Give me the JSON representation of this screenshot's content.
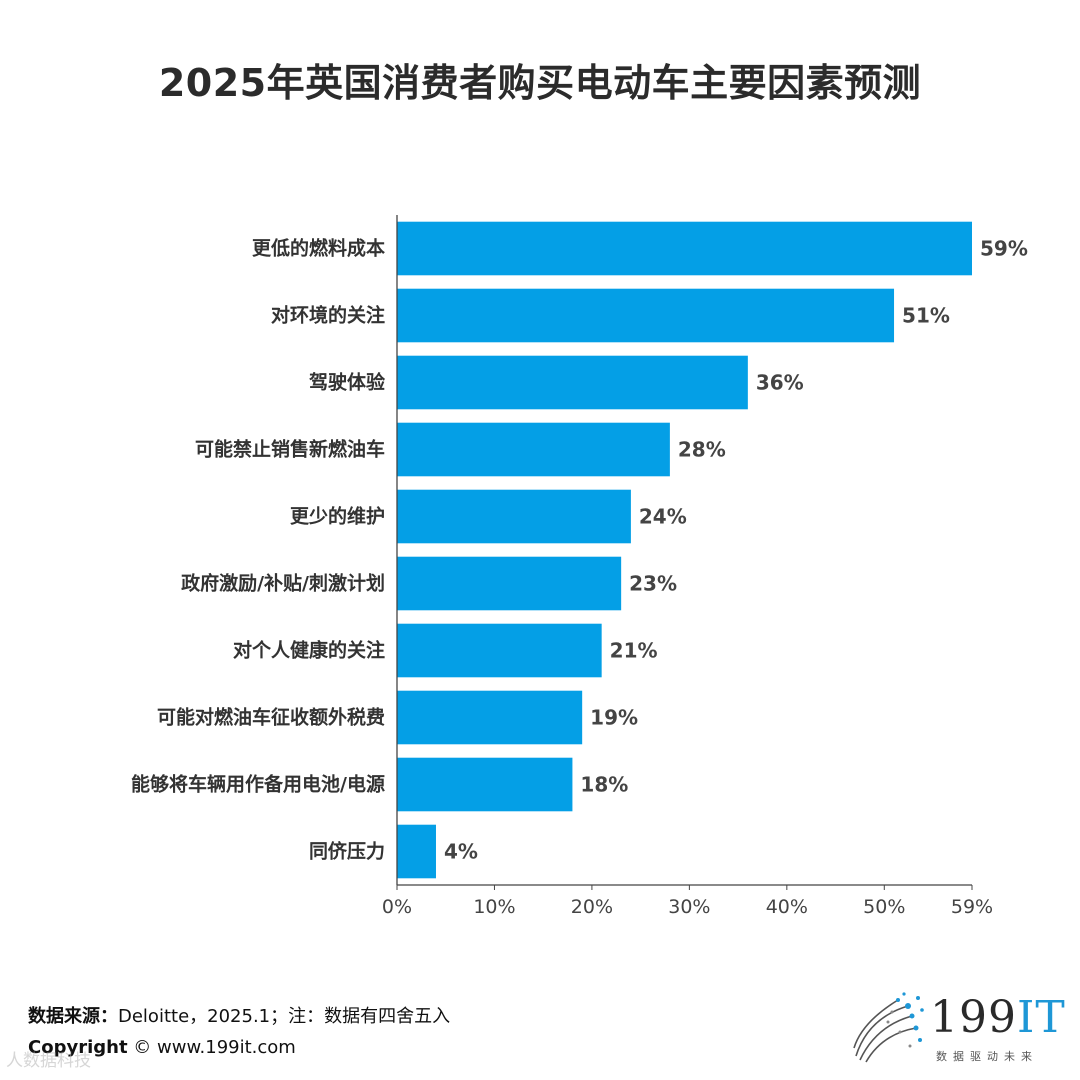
{
  "title": "2025年英国消费者购买电动车主要因素预测",
  "chart_data": {
    "type": "bar",
    "orientation": "horizontal",
    "title": "2025年英国消费者购买电动车主要因素预测",
    "categories": [
      "更低的燃料成本",
      "对环境的关注",
      "驾驶体验",
      "可能禁止销售新燃油车",
      "更少的维护",
      "政府激励/补贴/刺激计划",
      "对个人健康的关注",
      "可能对燃油车征收额外税费",
      "能够将车辆用作备用电池/电源",
      "同侪压力"
    ],
    "values": [
      59,
      51,
      36,
      28,
      24,
      23,
      21,
      19,
      18,
      4
    ],
    "value_labels": [
      "59%",
      "51%",
      "36%",
      "28%",
      "24%",
      "23%",
      "21%",
      "19%",
      "18%",
      "4%"
    ],
    "xlim": [
      0,
      59
    ],
    "xticks": [
      0,
      10,
      20,
      30,
      40,
      50,
      59
    ],
    "xtick_labels": [
      "0%",
      "10%",
      "20%",
      "30%",
      "40%",
      "50%",
      "59%"
    ],
    "bar_color": "#049fe6"
  },
  "footer": {
    "source_label": "数据来源：",
    "source_text": "Deloitte，2025.1；注：数据有四舍五入",
    "copyright_label": "Copyright",
    "copyright_text": "© www.199it.com"
  },
  "logo": {
    "text_main": "199",
    "text_accent": "IT",
    "subtitle": "数据驱动未来"
  },
  "watermark": "人数据科技"
}
